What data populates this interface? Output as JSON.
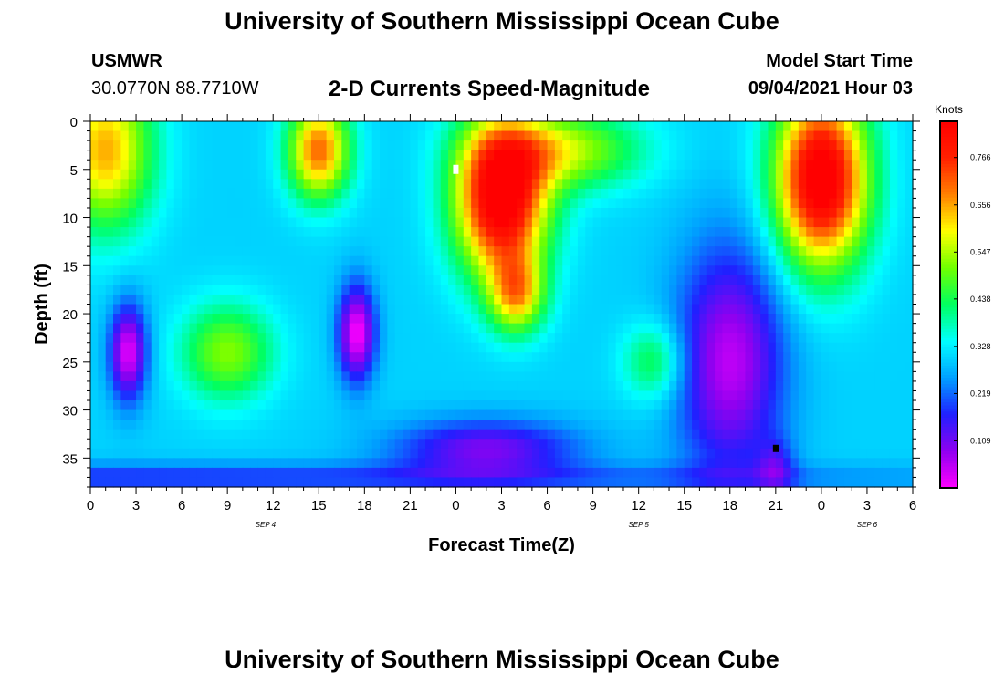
{
  "header": {
    "title": "University of Southern Mississippi Ocean Cube",
    "station_name": "USMWR",
    "station_coords": "30.0770N  88.7710W",
    "plot_title": "2-D Currents Speed-Magnitude",
    "model_label": "Model Start Time",
    "model_time": "09/04/2021 Hour 03"
  },
  "footer": {
    "title": "University of Southern Mississippi Ocean Cube"
  },
  "chart_data": {
    "type": "heatmap",
    "title": "2-D Currents Speed-Magnitude",
    "xlabel": "Forecast Time(Z)",
    "ylabel": "Depth (ft)",
    "x_tick_labels": [
      "0",
      "3",
      "6",
      "9",
      "12",
      "15",
      "18",
      "21",
      "0",
      "3",
      "6",
      "9",
      "12",
      "15",
      "18",
      "21",
      "0",
      "3",
      "6"
    ],
    "x_date_labels": [
      "SEP 4",
      "SEP 5",
      "SEP 6"
    ],
    "y_tick_labels": [
      "0",
      "5",
      "10",
      "15",
      "20",
      "25",
      "30",
      "35"
    ],
    "y_range": [
      0,
      38
    ],
    "x_range_hours": [
      0,
      54
    ],
    "colorbar": {
      "unit": "Knots",
      "tick_labels": [
        "0.766",
        "0.656",
        "0.547",
        "0.438",
        "0.328",
        "0.219",
        "0.109"
      ],
      "range": [
        0.0,
        0.85
      ],
      "colors": [
        "#ff00ff",
        "#9000f0",
        "#2020ff",
        "#00a0ff",
        "#00ffff",
        "#00ff60",
        "#70ff00",
        "#ffff00",
        "#ff8000",
        "#ff2000",
        "#ff0000"
      ]
    },
    "blobs": [
      {
        "x": 1,
        "y": 3,
        "sx": 3,
        "sy": 8,
        "v": 0.35
      },
      {
        "x": 15,
        "y": 3,
        "sx": 2,
        "sy": 5,
        "v": 0.4
      },
      {
        "x": 27,
        "y": 8,
        "sx": 3,
        "sy": 8,
        "v": 0.6
      },
      {
        "x": 28,
        "y": 18,
        "sx": 1.8,
        "sy": 4,
        "v": 0.3
      },
      {
        "x": 31,
        "y": 3,
        "sx": 5,
        "sy": 4,
        "v": 0.25
      },
      {
        "x": 48,
        "y": 6,
        "sx": 3,
        "sy": 9,
        "v": 0.6
      },
      {
        "x": 9,
        "y": 24,
        "sx": 3,
        "sy": 5,
        "v": 0.22
      },
      {
        "x": 2.5,
        "y": 24,
        "sx": 1.2,
        "sy": 5,
        "v": -0.28
      },
      {
        "x": 17.5,
        "y": 22,
        "sx": 1.2,
        "sy": 5,
        "v": -0.3
      },
      {
        "x": 42,
        "y": 25,
        "sx": 3.5,
        "sy": 12,
        "v": -0.25
      },
      {
        "x": 45,
        "y": 36,
        "sx": 1.2,
        "sy": 3,
        "v": -0.12
      },
      {
        "x": 37,
        "y": 25,
        "sx": 2,
        "sy": 4,
        "v": 0.15
      },
      {
        "x": 26,
        "y": 34,
        "sx": 6,
        "sy": 3,
        "v": -0.2
      },
      {
        "x": 0,
        "y": 37,
        "sx": 54,
        "sy": 1.5,
        "v": -0.12
      }
    ]
  }
}
